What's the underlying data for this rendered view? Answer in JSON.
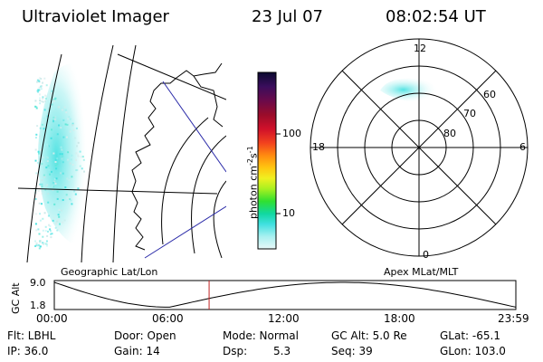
{
  "header": {
    "title": "Ultraviolet Imager",
    "date": "23 Jul 07",
    "time": "08:02:54 UT"
  },
  "colorbar": {
    "label": "photon cm",
    "label_sup1": "-2",
    "label_mid": "s",
    "label_sup2": "-1",
    "ticks": [
      "100",
      "10"
    ],
    "colors": [
      "#0b0a30",
      "#3a0d5c",
      "#6a0a4a",
      "#9a0c2a",
      "#d0102a",
      "#f2421e",
      "#ff8a10",
      "#ffc610",
      "#f0f020",
      "#a8f020",
      "#30e030",
      "#10d8a0",
      "#40e0e0",
      "#a8f0f0",
      "#e8f8f8"
    ]
  },
  "panels": {
    "left_label": "Geographic Lat/Lon",
    "right_label": "Apex MLat/MLT"
  },
  "polar": {
    "mlt_labels": [
      "12",
      "18",
      "6",
      "0"
    ],
    "lat_labels": [
      "60",
      "70",
      "80"
    ]
  },
  "altitude_plot": {
    "ylabel": "GC Alt",
    "yticks": [
      "9.0",
      "1.8"
    ],
    "xticks": [
      "00:00",
      "06:00",
      "12:00",
      "18:00",
      "23:59"
    ],
    "current_marker_hours": 8.05,
    "line_color": "#000000",
    "marker_color": "#c02020"
  },
  "info": {
    "row1": [
      "Flt: LBHL",
      "Door: Open",
      "Mode: Normal",
      "GC Alt: 5.0 Re",
      "GLat: -65.1"
    ],
    "row2": [
      "IP: 36.0",
      "Gain: 14",
      "Dsp:",
      "5.3",
      "Seq: 39",
      "GLon: 103.0"
    ]
  }
}
